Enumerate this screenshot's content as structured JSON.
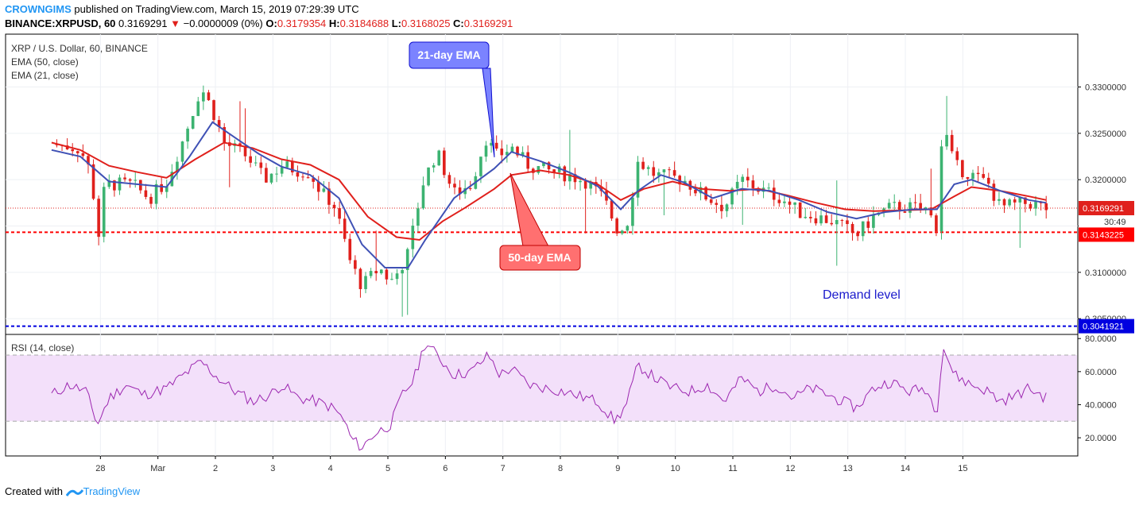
{
  "header": {
    "author": "CROWNGIMS",
    "published_text": "published on TradingView.com, March 15, 2019 07:29:39 UTC",
    "symbol": "BINANCE:XRPUSD, 60",
    "last": "0.3169291",
    "change_arrow": "▼",
    "change": "−0.0000009 (0%)",
    "o_label": "O:",
    "o": "0.3179354",
    "h_label": "H:",
    "h": "0.3184688",
    "l_label": "L:",
    "l": "0.3168025",
    "c_label": "C:",
    "c": "0.3169291"
  },
  "legend": {
    "title": "XRP / U.S. Dollar, 60, BINANCE",
    "ema50": "EMA (50, close)",
    "ema21": "EMA (21, close)",
    "rsi": "RSI (14, close)"
  },
  "annotations": {
    "ema21_callout": "21-day EMA",
    "ema50_callout": "50-day EMA",
    "demand": "Demand level"
  },
  "price_labels": {
    "last": "0.3169291",
    "countdown": "30:49",
    "support": "0.3143225",
    "demand": "0.3041921"
  },
  "footer": {
    "created_with": "Created with",
    "brand": "TradingView"
  },
  "colors": {
    "up": "#3cb371",
    "down": "#e0201c",
    "ema21": "#3f51b5",
    "ema50": "#e0201c",
    "rsi_line": "#9c27b0",
    "rsi_band": "#f3e0fa",
    "support_line": "#ff0000",
    "demand_line": "#0000e0"
  },
  "chart_data": [
    {
      "type": "candlestick",
      "title": "XRP / U.S. Dollar, 60, BINANCE",
      "x_ticks": [
        "28",
        "Mar",
        "2",
        "3",
        "4",
        "5",
        "6",
        "7",
        "8",
        "9",
        "10",
        "11",
        "12",
        "13",
        "14",
        "15"
      ],
      "y_ticks": [
        "0.3050000",
        "0.3100000",
        "0.3150000",
        "0.3200000",
        "0.3250000",
        "0.3300000"
      ],
      "ylim": [
        0.3033,
        0.3357
      ],
      "horizontal_levels": [
        {
          "name": "support",
          "value": 0.3143225
        },
        {
          "name": "demand",
          "value": 0.3041921
        }
      ],
      "last_price": 0.3169291,
      "close_path": [
        {
          "x": 27.0,
          "y": 0.3238
        },
        {
          "x": 27.3,
          "y": 0.3236
        },
        {
          "x": 27.5,
          "y": 0.3233
        },
        {
          "x": 27.7,
          "y": 0.3205
        },
        {
          "x": 27.8,
          "y": 0.313
        },
        {
          "x": 27.9,
          "y": 0.3185
        },
        {
          "x": 28.0,
          "y": 0.3195
        },
        {
          "x": 28.4,
          "y": 0.3195
        },
        {
          "x": 28.7,
          "y": 0.318
        },
        {
          "x": 29.0,
          "y": 0.3198
        },
        {
          "x": 29.3,
          "y": 0.3245
        },
        {
          "x": 29.6,
          "y": 0.33
        },
        {
          "x": 29.8,
          "y": 0.3275
        },
        {
          "x": 30.0,
          "y": 0.324
        },
        {
          "x": 30.4,
          "y": 0.3225
        },
        {
          "x": 30.7,
          "y": 0.32
        },
        {
          "x": 31.0,
          "y": 0.3215
        },
        {
          "x": 31.3,
          "y": 0.321
        },
        {
          "x": 31.5,
          "y": 0.3207
        },
        {
          "x": 31.7,
          "y": 0.3185
        },
        {
          "x": 31.9,
          "y": 0.3175
        },
        {
          "x": 32.0,
          "y": 0.3155
        },
        {
          "x": 32.2,
          "y": 0.311
        },
        {
          "x": 32.4,
          "y": 0.3085
        },
        {
          "x": 32.7,
          "y": 0.3105
        },
        {
          "x": 32.9,
          "y": 0.309
        },
        {
          "x": 33.0,
          "y": 0.3098
        },
        {
          "x": 33.2,
          "y": 0.312
        },
        {
          "x": 33.45,
          "y": 0.3195
        },
        {
          "x": 33.7,
          "y": 0.323
        },
        {
          "x": 34.0,
          "y": 0.3185
        },
        {
          "x": 34.3,
          "y": 0.3195
        },
        {
          "x": 34.55,
          "y": 0.3245
        },
        {
          "x": 34.75,
          "y": 0.3225
        },
        {
          "x": 35.0,
          "y": 0.3235
        },
        {
          "x": 35.3,
          "y": 0.3215
        },
        {
          "x": 35.6,
          "y": 0.321
        },
        {
          "x": 36.0,
          "y": 0.3205
        },
        {
          "x": 36.3,
          "y": 0.3198
        },
        {
          "x": 36.6,
          "y": 0.318
        },
        {
          "x": 36.85,
          "y": 0.3145
        },
        {
          "x": 37.0,
          "y": 0.315
        },
        {
          "x": 37.2,
          "y": 0.322
        },
        {
          "x": 37.5,
          "y": 0.3205
        },
        {
          "x": 38.0,
          "y": 0.32
        },
        {
          "x": 38.3,
          "y": 0.3185
        },
        {
          "x": 38.7,
          "y": 0.317
        },
        {
          "x": 39.0,
          "y": 0.32
        },
        {
          "x": 39.3,
          "y": 0.319
        },
        {
          "x": 39.7,
          "y": 0.318
        },
        {
          "x": 40.0,
          "y": 0.3165
        },
        {
          "x": 40.3,
          "y": 0.316
        },
        {
          "x": 40.6,
          "y": 0.3155
        },
        {
          "x": 41.0,
          "y": 0.314
        },
        {
          "x": 41.3,
          "y": 0.316
        },
        {
          "x": 41.6,
          "y": 0.317
        },
        {
          "x": 41.9,
          "y": 0.317
        },
        {
          "x": 42.2,
          "y": 0.3168
        },
        {
          "x": 42.4,
          "y": 0.315
        },
        {
          "x": 42.5,
          "y": 0.3262
        },
        {
          "x": 42.7,
          "y": 0.3215
        },
        {
          "x": 43.0,
          "y": 0.3205
        },
        {
          "x": 43.3,
          "y": 0.3195
        },
        {
          "x": 43.5,
          "y": 0.317
        },
        {
          "x": 43.7,
          "y": 0.3172
        },
        {
          "x": 44.0,
          "y": 0.3175
        },
        {
          "x": 44.3,
          "y": 0.3169
        }
      ],
      "ema21_path": [
        {
          "x": 27.0,
          "y": 0.3232
        },
        {
          "x": 27.5,
          "y": 0.3225
        },
        {
          "x": 28.0,
          "y": 0.3198
        },
        {
          "x": 28.5,
          "y": 0.3195
        },
        {
          "x": 29.0,
          "y": 0.3192
        },
        {
          "x": 29.4,
          "y": 0.3225
        },
        {
          "x": 29.8,
          "y": 0.3262
        },
        {
          "x": 30.2,
          "y": 0.3245
        },
        {
          "x": 30.6,
          "y": 0.3228
        },
        {
          "x": 31.0,
          "y": 0.3214
        },
        {
          "x": 31.5,
          "y": 0.3205
        },
        {
          "x": 32.0,
          "y": 0.318
        },
        {
          "x": 32.4,
          "y": 0.313
        },
        {
          "x": 32.8,
          "y": 0.3105
        },
        {
          "x": 33.2,
          "y": 0.3105
        },
        {
          "x": 33.5,
          "y": 0.3135
        },
        {
          "x": 34.0,
          "y": 0.318
        },
        {
          "x": 34.7,
          "y": 0.3212
        },
        {
          "x": 35.0,
          "y": 0.323
        },
        {
          "x": 35.5,
          "y": 0.322
        },
        {
          "x": 36.0,
          "y": 0.3208
        },
        {
          "x": 36.5,
          "y": 0.3193
        },
        {
          "x": 36.9,
          "y": 0.3168
        },
        {
          "x": 37.2,
          "y": 0.3188
        },
        {
          "x": 37.6,
          "y": 0.3205
        },
        {
          "x": 38.0,
          "y": 0.3197
        },
        {
          "x": 38.5,
          "y": 0.318
        },
        {
          "x": 39.0,
          "y": 0.319
        },
        {
          "x": 39.5,
          "y": 0.3188
        },
        {
          "x": 40.0,
          "y": 0.3178
        },
        {
          "x": 40.5,
          "y": 0.3165
        },
        {
          "x": 41.0,
          "y": 0.3158
        },
        {
          "x": 41.5,
          "y": 0.3165
        },
        {
          "x": 42.0,
          "y": 0.3168
        },
        {
          "x": 42.4,
          "y": 0.3168
        },
        {
          "x": 42.7,
          "y": 0.3195
        },
        {
          "x": 43.0,
          "y": 0.32
        },
        {
          "x": 43.5,
          "y": 0.3188
        },
        {
          "x": 44.0,
          "y": 0.3178
        },
        {
          "x": 44.3,
          "y": 0.3175
        }
      ],
      "ema50_path": [
        {
          "x": 27.0,
          "y": 0.324
        },
        {
          "x": 27.5,
          "y": 0.3232
        },
        {
          "x": 28.0,
          "y": 0.3215
        },
        {
          "x": 28.5,
          "y": 0.3208
        },
        {
          "x": 29.0,
          "y": 0.3202
        },
        {
          "x": 29.5,
          "y": 0.3222
        },
        {
          "x": 30.0,
          "y": 0.324
        },
        {
          "x": 30.5,
          "y": 0.3234
        },
        {
          "x": 31.0,
          "y": 0.3222
        },
        {
          "x": 31.5,
          "y": 0.3216
        },
        {
          "x": 32.0,
          "y": 0.32
        },
        {
          "x": 32.5,
          "y": 0.316
        },
        {
          "x": 33.0,
          "y": 0.3138
        },
        {
          "x": 33.4,
          "y": 0.3135
        },
        {
          "x": 33.8,
          "y": 0.3155
        },
        {
          "x": 34.2,
          "y": 0.317
        },
        {
          "x": 34.7,
          "y": 0.319
        },
        {
          "x": 35.0,
          "y": 0.3205
        },
        {
          "x": 35.5,
          "y": 0.321
        },
        {
          "x": 36.0,
          "y": 0.3205
        },
        {
          "x": 36.5,
          "y": 0.3195
        },
        {
          "x": 36.9,
          "y": 0.3178
        },
        {
          "x": 37.3,
          "y": 0.319
        },
        {
          "x": 37.8,
          "y": 0.3198
        },
        {
          "x": 38.3,
          "y": 0.319
        },
        {
          "x": 38.8,
          "y": 0.3188
        },
        {
          "x": 39.3,
          "y": 0.319
        },
        {
          "x": 39.8,
          "y": 0.3183
        },
        {
          "x": 40.3,
          "y": 0.3175
        },
        {
          "x": 40.8,
          "y": 0.3168
        },
        {
          "x": 41.3,
          "y": 0.3166
        },
        {
          "x": 41.8,
          "y": 0.3167
        },
        {
          "x": 42.3,
          "y": 0.3168
        },
        {
          "x": 42.7,
          "y": 0.3182
        },
        {
          "x": 43.0,
          "y": 0.3192
        },
        {
          "x": 43.5,
          "y": 0.3188
        },
        {
          "x": 44.0,
          "y": 0.3182
        },
        {
          "x": 44.3,
          "y": 0.3178
        }
      ]
    },
    {
      "type": "line",
      "title": "RSI (14, close)",
      "y_ticks": [
        "20.0000",
        "40.0000",
        "60.0000",
        "80.0000"
      ],
      "ylim": [
        9.0,
        82.5
      ],
      "band": [
        30,
        70
      ],
      "series": [
        {
          "name": "RSI (14, close)",
          "values": [
            {
              "x": 27.0,
              "y": 46
            },
            {
              "x": 27.3,
              "y": 52
            },
            {
              "x": 27.6,
              "y": 48
            },
            {
              "x": 27.8,
              "y": 28
            },
            {
              "x": 28.0,
              "y": 44
            },
            {
              "x": 28.3,
              "y": 52
            },
            {
              "x": 28.6,
              "y": 46
            },
            {
              "x": 29.0,
              "y": 50
            },
            {
              "x": 29.3,
              "y": 58
            },
            {
              "x": 29.6,
              "y": 66
            },
            {
              "x": 29.9,
              "y": 56
            },
            {
              "x": 30.2,
              "y": 48
            },
            {
              "x": 30.5,
              "y": 42
            },
            {
              "x": 30.8,
              "y": 46
            },
            {
              "x": 31.0,
              "y": 52
            },
            {
              "x": 31.3,
              "y": 44
            },
            {
              "x": 31.6,
              "y": 42
            },
            {
              "x": 31.9,
              "y": 38
            },
            {
              "x": 32.1,
              "y": 30
            },
            {
              "x": 32.2,
              "y": 20
            },
            {
              "x": 32.4,
              "y": 14
            },
            {
              "x": 32.6,
              "y": 22
            },
            {
              "x": 32.9,
              "y": 28
            },
            {
              "x": 33.1,
              "y": 46
            },
            {
              "x": 33.3,
              "y": 55
            },
            {
              "x": 33.5,
              "y": 78
            },
            {
              "x": 33.7,
              "y": 70
            },
            {
              "x": 34.0,
              "y": 58
            },
            {
              "x": 34.3,
              "y": 60
            },
            {
              "x": 34.6,
              "y": 70
            },
            {
              "x": 34.8,
              "y": 58
            },
            {
              "x": 35.0,
              "y": 62
            },
            {
              "x": 35.3,
              "y": 52
            },
            {
              "x": 35.6,
              "y": 50
            },
            {
              "x": 35.9,
              "y": 48
            },
            {
              "x": 36.2,
              "y": 45
            },
            {
              "x": 36.5,
              "y": 42
            },
            {
              "x": 36.8,
              "y": 30
            },
            {
              "x": 37.0,
              "y": 40
            },
            {
              "x": 37.2,
              "y": 64
            },
            {
              "x": 37.5,
              "y": 56
            },
            {
              "x": 37.8,
              "y": 50
            },
            {
              "x": 38.1,
              "y": 48
            },
            {
              "x": 38.4,
              "y": 52
            },
            {
              "x": 38.7,
              "y": 42
            },
            {
              "x": 39.0,
              "y": 56
            },
            {
              "x": 39.3,
              "y": 48
            },
            {
              "x": 39.6,
              "y": 52
            },
            {
              "x": 39.9,
              "y": 44
            },
            {
              "x": 40.2,
              "y": 50
            },
            {
              "x": 40.5,
              "y": 46
            },
            {
              "x": 41.0,
              "y": 38
            },
            {
              "x": 41.3,
              "y": 50
            },
            {
              "x": 41.6,
              "y": 54
            },
            {
              "x": 41.9,
              "y": 48
            },
            {
              "x": 42.2,
              "y": 50
            },
            {
              "x": 42.4,
              "y": 36
            },
            {
              "x": 42.5,
              "y": 76
            },
            {
              "x": 42.7,
              "y": 58
            },
            {
              "x": 43.0,
              "y": 52
            },
            {
              "x": 43.3,
              "y": 48
            },
            {
              "x": 43.5,
              "y": 42
            },
            {
              "x": 43.8,
              "y": 46
            },
            {
              "x": 44.0,
              "y": 50
            },
            {
              "x": 44.3,
              "y": 44
            }
          ]
        }
      ]
    }
  ]
}
